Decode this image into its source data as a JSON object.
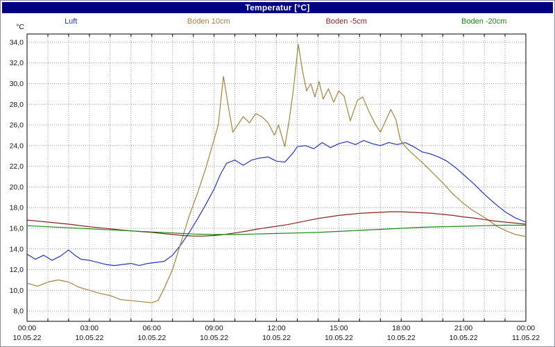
{
  "window": {
    "title": "Temperatur [°C]"
  },
  "colors": {
    "titlebar_bg": "#000080",
    "titlebar_text": "#ffffff",
    "plot_border": "#000000",
    "grid": "#999999",
    "background": "#ffffff"
  },
  "chart_data": {
    "type": "line",
    "title": "Temperatur [°C]",
    "y_unit": "°C",
    "grid": true,
    "legend_position": "top",
    "xlim": [
      0,
      24
    ],
    "ylim": [
      7.0,
      34.8
    ],
    "x_axis_note": "hours from 10.05.22 00:00 to 11.05.22 00:00",
    "yticks": [
      8,
      10,
      12,
      14,
      16,
      18,
      20,
      22,
      24,
      26,
      28,
      30,
      32,
      34
    ],
    "ytick_labels": [
      "8,0",
      "10,0",
      "12,0",
      "14,0",
      "16,0",
      "18,0",
      "20,0",
      "22,0",
      "24,0",
      "26,0",
      "28,0",
      "30,0",
      "32,0",
      "34,0"
    ],
    "xticks": [
      0,
      3,
      6,
      9,
      12,
      15,
      18,
      21,
      24
    ],
    "xtick_labels": [
      "00:00",
      "03:00",
      "06:00",
      "09:00",
      "12:00",
      "15:00",
      "18:00",
      "21:00",
      "00:00"
    ],
    "xdate_labels": [
      "10.05.22",
      "10.05.22",
      "10.05.22",
      "10.05.22",
      "10.05.22",
      "10.05.22",
      "10.05.22",
      "10.05.22",
      "11.05.22"
    ],
    "series": [
      {
        "name": "Luft",
        "color": "#2233bb",
        "x": [
          0,
          0.4,
          0.8,
          1.2,
          1.6,
          2.0,
          2.3,
          2.6,
          3.0,
          3.4,
          3.8,
          4.2,
          4.6,
          5.0,
          5.4,
          5.8,
          6.2,
          6.6,
          7.0,
          7.4,
          7.8,
          8.2,
          8.6,
          9.0,
          9.3,
          9.6,
          10.0,
          10.4,
          10.8,
          11.2,
          11.6,
          12.0,
          12.4,
          12.8,
          13.0,
          13.4,
          13.8,
          14.2,
          14.6,
          15.0,
          15.4,
          15.8,
          16.2,
          16.6,
          17.0,
          17.4,
          17.8,
          18.2,
          18.6,
          19.0,
          19.4,
          19.8,
          20.2,
          20.6,
          21.0,
          21.5,
          22.0,
          22.5,
          23.0,
          23.5,
          24.0
        ],
        "y": [
          13.5,
          13.0,
          13.4,
          12.9,
          13.3,
          13.9,
          13.4,
          13.0,
          12.9,
          12.7,
          12.5,
          12.4,
          12.5,
          12.6,
          12.4,
          12.6,
          12.7,
          12.8,
          13.4,
          14.4,
          15.6,
          16.9,
          18.3,
          19.8,
          21.2,
          22.3,
          22.6,
          22.1,
          22.6,
          22.8,
          22.9,
          22.5,
          22.4,
          23.3,
          23.9,
          24.0,
          23.7,
          24.3,
          23.8,
          24.2,
          24.4,
          24.1,
          24.5,
          24.2,
          24.0,
          24.3,
          24.1,
          24.3,
          23.9,
          23.4,
          23.2,
          22.9,
          22.5,
          21.9,
          21.2,
          20.3,
          19.3,
          18.4,
          17.6,
          17.0,
          16.6
        ]
      },
      {
        "name": "Boden 10cm",
        "color": "#a6803e",
        "x": [
          0,
          0.5,
          1.0,
          1.5,
          2.0,
          2.5,
          3.0,
          3.5,
          4.0,
          4.5,
          5.0,
          5.5,
          6.0,
          6.3,
          6.6,
          7.0,
          7.4,
          7.8,
          8.2,
          8.6,
          9.0,
          9.2,
          9.45,
          9.7,
          9.9,
          10.1,
          10.4,
          10.7,
          11.0,
          11.3,
          11.6,
          11.9,
          12.1,
          12.4,
          12.6,
          12.8,
          13.05,
          13.25,
          13.45,
          13.65,
          13.85,
          14.05,
          14.25,
          14.5,
          14.75,
          15.0,
          15.25,
          15.55,
          15.9,
          16.15,
          16.45,
          16.75,
          17.0,
          17.25,
          17.5,
          17.75,
          17.95,
          18.2,
          18.5,
          19.0,
          19.5,
          20.0,
          20.5,
          21.0,
          21.4,
          21.8,
          22.2,
          22.6,
          23.0,
          23.5,
          24.0
        ],
        "y": [
          10.7,
          10.4,
          10.8,
          11.0,
          10.8,
          10.3,
          10.0,
          9.7,
          9.5,
          9.1,
          9.0,
          8.9,
          8.8,
          9.0,
          10.2,
          12.0,
          14.6,
          17.2,
          19.4,
          21.8,
          24.6,
          26.0,
          30.7,
          27.6,
          25.3,
          25.9,
          26.8,
          26.2,
          27.1,
          26.8,
          26.2,
          25.0,
          26.0,
          23.9,
          26.3,
          29.2,
          33.8,
          31.3,
          29.3,
          30.0,
          28.7,
          30.2,
          28.5,
          29.5,
          28.2,
          29.3,
          28.8,
          26.4,
          28.4,
          28.7,
          27.3,
          26.1,
          25.3,
          26.4,
          27.5,
          26.5,
          24.6,
          23.9,
          23.3,
          22.4,
          21.4,
          20.4,
          19.3,
          18.4,
          17.8,
          17.3,
          16.8,
          16.2,
          15.8,
          15.4,
          15.2
        ]
      },
      {
        "name": "Boden -5cm",
        "color": "#8e1f1f",
        "x": [
          0,
          1,
          2,
          3,
          4,
          5,
          6,
          7,
          7.5,
          8,
          8.5,
          9,
          9.5,
          10,
          10.5,
          11,
          11.5,
          12,
          12.5,
          13,
          13.5,
          14,
          14.5,
          15,
          15.5,
          16,
          16.5,
          17,
          17.5,
          18,
          18.5,
          19,
          19.5,
          20,
          20.5,
          21,
          21.5,
          22,
          22.5,
          23,
          23.5,
          24
        ],
        "y": [
          16.8,
          16.6,
          16.4,
          16.15,
          15.95,
          15.75,
          15.6,
          15.4,
          15.3,
          15.25,
          15.25,
          15.3,
          15.4,
          15.55,
          15.7,
          15.9,
          16.05,
          16.2,
          16.35,
          16.55,
          16.75,
          16.95,
          17.1,
          17.25,
          17.35,
          17.45,
          17.5,
          17.55,
          17.6,
          17.6,
          17.55,
          17.5,
          17.45,
          17.35,
          17.25,
          17.1,
          17.0,
          16.85,
          16.7,
          16.6,
          16.5,
          16.4
        ]
      },
      {
        "name": "Boden -20cm",
        "color": "#168a16",
        "x": [
          0,
          1,
          2,
          3,
          4,
          5,
          6,
          7,
          8,
          9,
          10,
          11,
          12,
          13,
          14,
          15,
          16,
          17,
          18,
          19,
          20,
          21,
          22,
          23,
          24
        ],
        "y": [
          16.25,
          16.15,
          16.05,
          15.95,
          15.85,
          15.75,
          15.65,
          15.55,
          15.45,
          15.4,
          15.4,
          15.45,
          15.5,
          15.55,
          15.6,
          15.7,
          15.8,
          15.9,
          16.0,
          16.1,
          16.15,
          16.2,
          16.25,
          16.3,
          16.3
        ]
      }
    ]
  }
}
